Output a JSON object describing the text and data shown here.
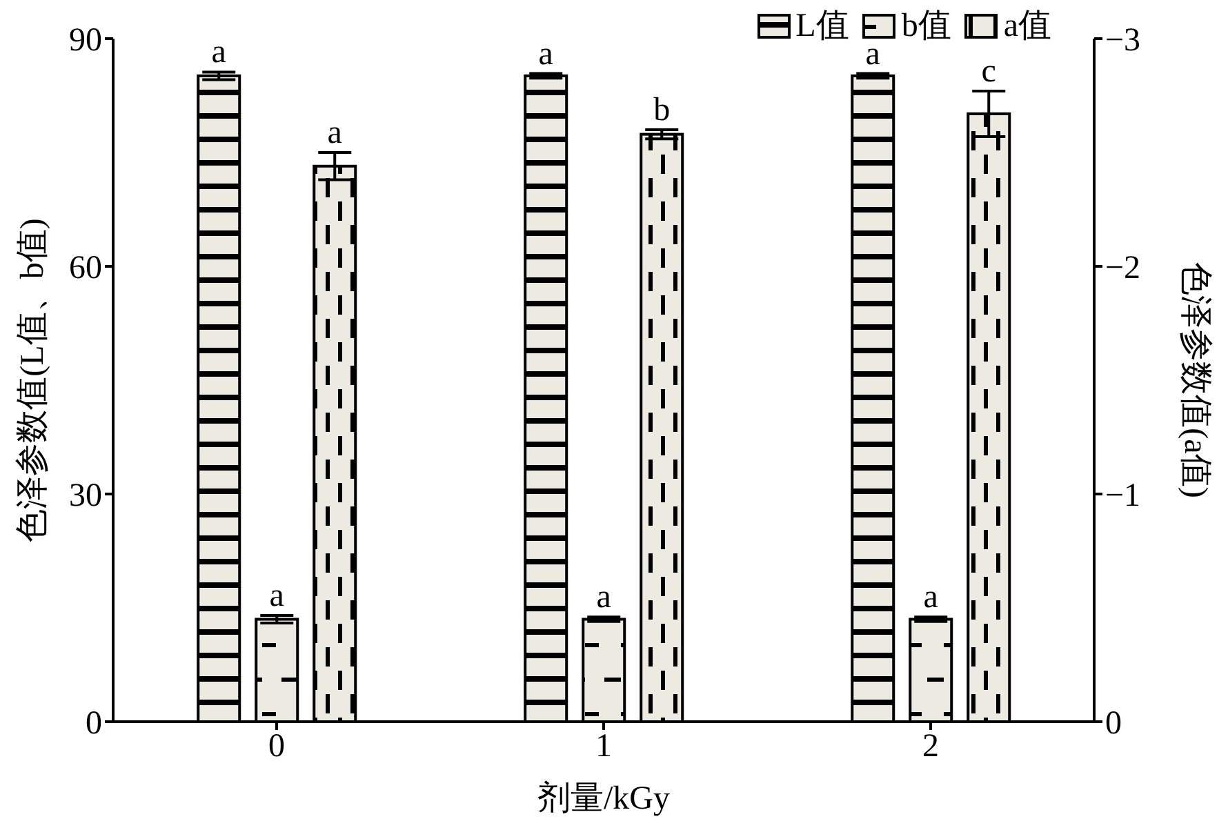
{
  "chart_data": {
    "type": "bar",
    "xlabel": "剂量/kGy",
    "ylabel": "色泽参数值(L值、b值)",
    "y2label": "色泽参数值(a值)",
    "categories": [
      "0",
      "1",
      "2"
    ],
    "series": [
      {
        "name": "L值",
        "color": "#edeae1",
        "values": [
          85.1,
          85.1,
          85.1
        ],
        "errors": [
          0.5,
          0.3,
          0.3
        ],
        "value_labels": [
          "a",
          "a",
          "a"
        ]
      },
      {
        "name": "b值",
        "color": "#edeae1",
        "values": [
          13.5,
          13.5,
          13.5
        ],
        "errors": [
          0.5,
          0.3,
          0.3
        ],
        "value_labels": [
          "a",
          "a",
          "a"
        ]
      },
      {
        "name": "a值",
        "color": "#edeae1",
        "axis": "y2",
        "values": [
          -2.44,
          -2.58,
          -2.67
        ],
        "errors": [
          0.06,
          0.02,
          0.1
        ],
        "value_labels": [
          "a",
          "b",
          "c"
        ]
      }
    ],
    "ylim": [
      0,
      90
    ],
    "yticks": [
      0,
      30,
      60,
      90
    ],
    "y2lim": [
      0,
      -3
    ],
    "y2ticks": [
      0,
      {
        "value": -1,
        "label": "−1"
      },
      {
        "value": -2,
        "label": "−2"
      },
      {
        "value": -3,
        "label": "−3"
      }
    ],
    "legend": "top right",
    "grid": false
  }
}
